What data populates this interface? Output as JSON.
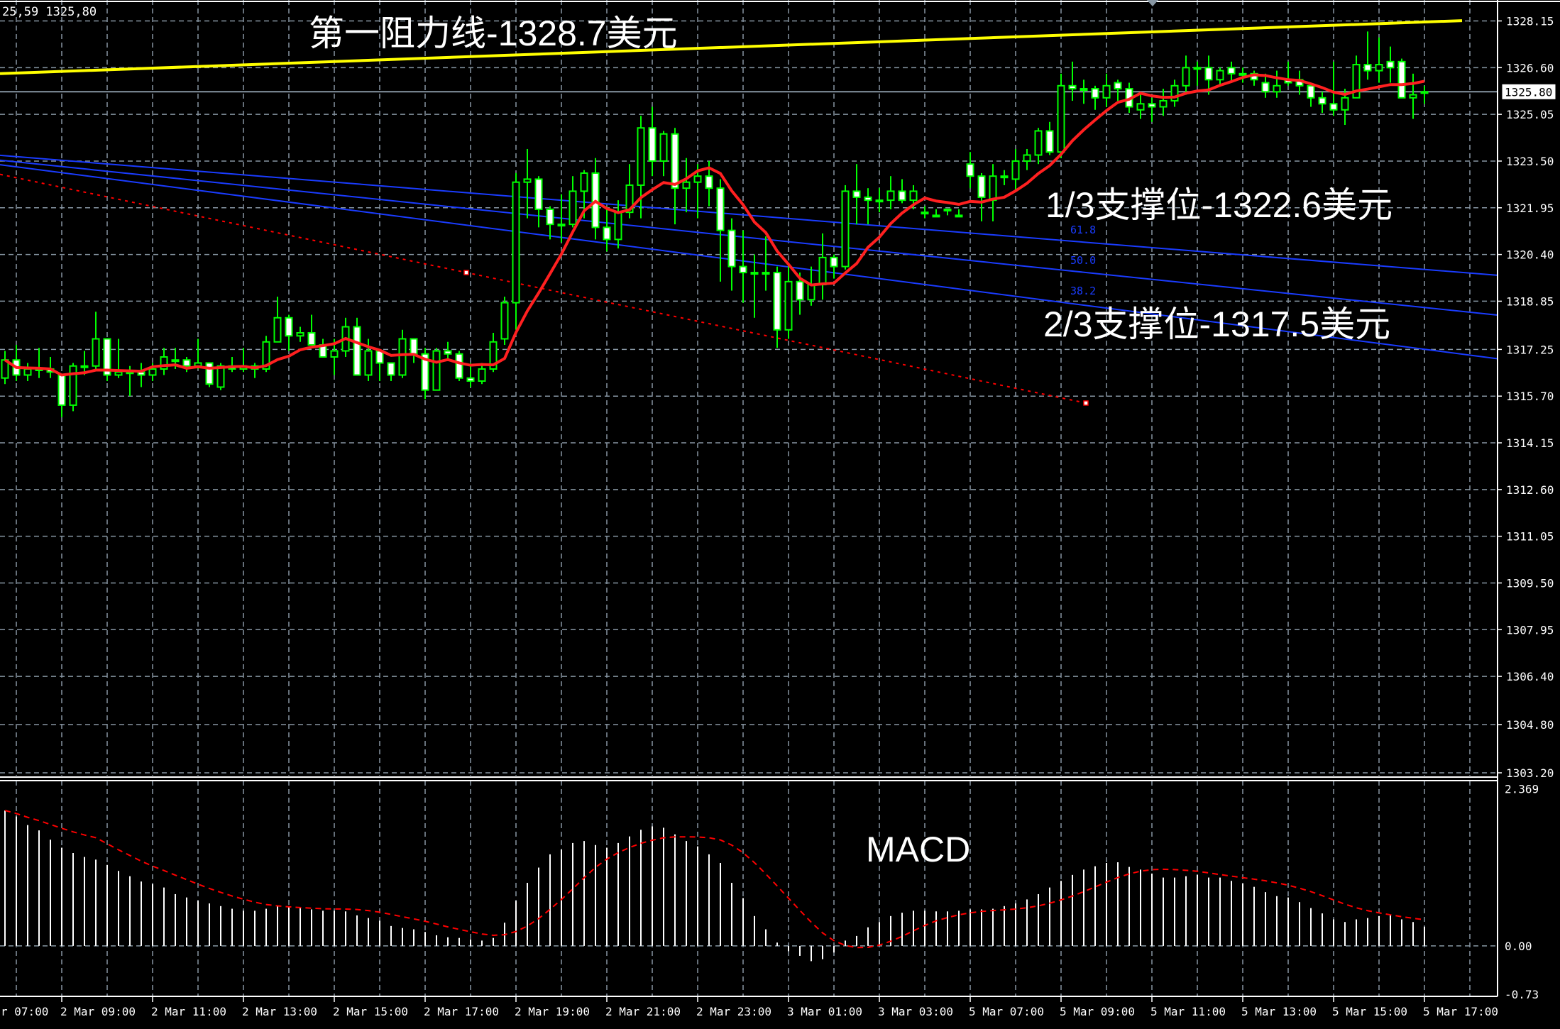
{
  "chart_data": {
    "type": "candlestick",
    "info_readout": "25,59 1325,80",
    "colors": {
      "background": "#000000",
      "grid": "#8796a3",
      "candle_outline": "#00ff00",
      "bull_body": "#000000",
      "bear_body": "#ffffff",
      "moving_average": "#ff2020",
      "resistance_line": "#ffff00",
      "fib_lines": "#1a3cff",
      "trend_dotted": "#ff0000",
      "macd_hist": "#ffffff",
      "macd_signal": "#ff0000",
      "current_price_line": "#8796a3"
    },
    "price_axis": {
      "ylim": [
        1303.2,
        1328.15
      ],
      "ticks": [
        "1328.15",
        "1326.60",
        "1325.05",
        "1323.50",
        "1321.95",
        "1320.40",
        "1318.85",
        "1317.25",
        "1315.70",
        "1314.15",
        "1312.60",
        "1311.05",
        "1309.50",
        "1307.95",
        "1306.40",
        "1304.80",
        "1303.20"
      ],
      "current_price": "1325.80"
    },
    "time_axis": {
      "interval": "15 min per candle",
      "labels": [
        "r 07:00",
        "2 Mar 09:00",
        "2 Mar 11:00",
        "2 Mar 13:00",
        "2 Mar 15:00",
        "2 Mar 17:00",
        "2 Mar 19:00",
        "2 Mar 21:00",
        "2 Mar 23:00",
        "3 Mar 01:00",
        "3 Mar 03:00",
        "5 Mar 07:00",
        "5 Mar 09:00",
        "5 Mar 11:00",
        "5 Mar 13:00",
        "5 Mar 15:00",
        "5 Mar 17:00"
      ]
    },
    "annotations": {
      "resistance": "第一阻力线-1328.7美元",
      "support_1": "1/3支撑位-1322.6美元",
      "support_2": "2/3支撑位-1317.5美元",
      "macd_title": "MACD"
    },
    "fib_levels": [
      "61.8",
      "50.0",
      "38.2"
    ],
    "lines": {
      "resistance": {
        "price_left": 1326.4,
        "price_right": 1328.16
      },
      "fib": [
        {
          "price_left": 1323.69,
          "price_right": 1319.71
        },
        {
          "price_left": 1323.53,
          "price_right": 1318.39
        },
        {
          "price_left": 1323.38,
          "price_right": 1316.94
        }
      ],
      "trend_dotted": {
        "price_left": 1323.06,
        "price_mid": 1319.8,
        "price_end": 1315.47
      }
    },
    "candles_ohlc": [
      [
        1316.3,
        1317.2,
        1316.1,
        1316.9
      ],
      [
        1316.9,
        1317.4,
        1316.2,
        1316.4
      ],
      [
        1316.4,
        1316.8,
        1316.2,
        1316.6
      ],
      [
        1316.6,
        1317.3,
        1316.3,
        1316.6
      ],
      [
        1316.6,
        1317.0,
        1316.3,
        1316.5
      ],
      [
        1316.4,
        1316.4,
        1315.0,
        1315.4
      ],
      [
        1315.4,
        1316.8,
        1315.2,
        1316.7
      ],
      [
        1316.7,
        1317.2,
        1316.4,
        1316.7
      ],
      [
        1316.7,
        1318.5,
        1316.6,
        1317.6
      ],
      [
        1317.6,
        1317.6,
        1316.2,
        1316.4
      ],
      [
        1316.4,
        1317.6,
        1316.3,
        1316.5
      ],
      [
        1316.5,
        1316.7,
        1315.7,
        1316.5
      ],
      [
        1316.5,
        1316.8,
        1316.0,
        1316.4
      ],
      [
        1316.4,
        1316.8,
        1316.2,
        1316.6
      ],
      [
        1316.6,
        1317.3,
        1316.4,
        1317.0
      ],
      [
        1316.9,
        1317.3,
        1316.6,
        1316.9
      ],
      [
        1316.9,
        1317.0,
        1316.5,
        1316.7
      ],
      [
        1316.7,
        1317.6,
        1316.6,
        1316.8
      ],
      [
        1316.8,
        1316.8,
        1316.0,
        1316.1
      ],
      [
        1316.0,
        1316.8,
        1315.9,
        1316.7
      ],
      [
        1316.7,
        1317.0,
        1316.5,
        1316.6
      ],
      [
        1316.6,
        1317.3,
        1316.5,
        1316.7
      ],
      [
        1316.7,
        1316.8,
        1316.3,
        1316.6
      ],
      [
        1316.6,
        1317.7,
        1316.5,
        1317.5
      ],
      [
        1317.5,
        1319.0,
        1317.5,
        1318.3
      ],
      [
        1318.3,
        1318.4,
        1317.2,
        1317.7
      ],
      [
        1317.7,
        1318.0,
        1317.5,
        1317.8
      ],
      [
        1317.8,
        1318.4,
        1317.4,
        1317.4
      ],
      [
        1317.4,
        1317.6,
        1317.0,
        1317.0
      ],
      [
        1317.0,
        1317.6,
        1316.4,
        1317.2
      ],
      [
        1317.2,
        1318.3,
        1317.0,
        1318.0
      ],
      [
        1318.0,
        1318.3,
        1316.4,
        1316.4
      ],
      [
        1316.4,
        1317.6,
        1316.2,
        1317.2
      ],
      [
        1317.2,
        1317.2,
        1316.2,
        1316.8
      ],
      [
        1316.8,
        1316.8,
        1316.2,
        1316.4
      ],
      [
        1316.4,
        1317.9,
        1316.3,
        1317.6
      ],
      [
        1317.6,
        1317.6,
        1316.8,
        1317.1
      ],
      [
        1317.1,
        1317.3,
        1315.6,
        1315.9
      ],
      [
        1315.9,
        1317.3,
        1315.9,
        1317.2
      ],
      [
        1317.2,
        1317.5,
        1316.9,
        1317.1
      ],
      [
        1317.1,
        1317.2,
        1316.2,
        1316.3
      ],
      [
        1316.3,
        1316.8,
        1316.0,
        1316.2
      ],
      [
        1316.2,
        1316.8,
        1316.1,
        1316.6
      ],
      [
        1316.6,
        1317.8,
        1316.5,
        1317.5
      ],
      [
        1317.6,
        1319.0,
        1317.4,
        1318.8
      ],
      [
        1318.8,
        1323.1,
        1317.9,
        1322.8
      ],
      [
        1322.8,
        1323.9,
        1321.6,
        1322.9
      ],
      [
        1322.9,
        1323.0,
        1321.3,
        1321.9
      ],
      [
        1321.9,
        1322.0,
        1320.9,
        1321.4
      ],
      [
        1321.4,
        1322.4,
        1320.8,
        1321.4
      ],
      [
        1321.4,
        1323.0,
        1321.3,
        1322.5
      ],
      [
        1322.5,
        1323.2,
        1321.6,
        1323.1
      ],
      [
        1323.1,
        1323.6,
        1320.9,
        1321.3
      ],
      [
        1321.3,
        1322.0,
        1320.5,
        1320.9
      ],
      [
        1320.9,
        1322.2,
        1320.6,
        1321.8
      ],
      [
        1321.8,
        1323.4,
        1321.6,
        1322.7
      ],
      [
        1322.7,
        1325.0,
        1321.6,
        1324.6
      ],
      [
        1324.6,
        1325.3,
        1323.0,
        1323.5
      ],
      [
        1323.5,
        1324.5,
        1323.0,
        1324.4
      ],
      [
        1324.4,
        1324.6,
        1321.4,
        1322.6
      ],
      [
        1322.6,
        1323.6,
        1321.8,
        1322.8
      ],
      [
        1322.8,
        1323.4,
        1321.6,
        1323.0
      ],
      [
        1323.0,
        1323.5,
        1322.0,
        1322.6
      ],
      [
        1322.6,
        1322.9,
        1319.5,
        1321.2
      ],
      [
        1321.2,
        1321.6,
        1319.2,
        1320.0
      ],
      [
        1320.0,
        1321.2,
        1318.8,
        1319.8
      ],
      [
        1319.8,
        1320.4,
        1318.3,
        1319.8
      ],
      [
        1319.8,
        1321.0,
        1319.2,
        1319.8
      ],
      [
        1319.8,
        1320.0,
        1317.3,
        1317.9
      ],
      [
        1317.9,
        1320.1,
        1317.6,
        1319.5
      ],
      [
        1319.5,
        1319.8,
        1318.4,
        1318.9
      ],
      [
        1318.9,
        1320.0,
        1318.7,
        1319.4
      ],
      [
        1319.4,
        1321.1,
        1318.9,
        1320.3
      ],
      [
        1320.3,
        1320.4,
        1319.6,
        1320.0
      ],
      [
        1320.0,
        1322.7,
        1319.9,
        1322.5
      ],
      [
        1322.5,
        1323.4,
        1321.4,
        1322.3
      ],
      [
        1322.3,
        1322.6,
        1321.4,
        1322.2
      ],
      [
        1322.2,
        1322.6,
        1321.8,
        1322.2
      ],
      [
        1322.2,
        1323.0,
        1321.9,
        1322.5
      ],
      [
        1322.5,
        1322.9,
        1322.1,
        1322.2
      ],
      [
        1322.2,
        1322.7,
        1321.9,
        1322.5
      ],
      [
        1321.8,
        1322.0,
        1321.6,
        1321.8
      ],
      [
        1321.7,
        1321.9,
        1321.7,
        1321.7
      ],
      [
        1321.9,
        1321.9,
        1321.7,
        1321.9
      ],
      [
        1321.7,
        1321.9,
        1321.7,
        1321.7
      ],
      [
        1323.4,
        1323.8,
        1322.6,
        1323.0
      ],
      [
        1323.0,
        1323.1,
        1321.5,
        1322.3
      ],
      [
        1322.2,
        1323.4,
        1321.5,
        1323.0
      ],
      [
        1323.0,
        1323.2,
        1322.7,
        1323.0
      ],
      [
        1322.9,
        1323.9,
        1322.5,
        1323.5
      ],
      [
        1323.5,
        1323.9,
        1323.2,
        1323.7
      ],
      [
        1323.7,
        1324.6,
        1323.4,
        1324.5
      ],
      [
        1324.5,
        1324.8,
        1323.7,
        1323.8
      ],
      [
        1323.8,
        1326.4,
        1323.6,
        1326.0
      ],
      [
        1326.0,
        1326.8,
        1325.5,
        1325.9
      ],
      [
        1325.9,
        1326.2,
        1325.4,
        1325.9
      ],
      [
        1325.9,
        1326.0,
        1325.2,
        1325.6
      ],
      [
        1325.6,
        1326.4,
        1325.3,
        1326.0
      ],
      [
        1326.1,
        1326.2,
        1325.5,
        1325.9
      ],
      [
        1325.9,
        1326.1,
        1325.1,
        1325.3
      ],
      [
        1325.2,
        1325.7,
        1324.9,
        1325.4
      ],
      [
        1325.4,
        1325.6,
        1324.8,
        1325.3
      ],
      [
        1325.3,
        1325.9,
        1325.0,
        1325.5
      ],
      [
        1325.5,
        1326.2,
        1325.3,
        1326.0
      ],
      [
        1326.0,
        1327.0,
        1325.7,
        1326.6
      ],
      [
        1326.6,
        1326.8,
        1326.0,
        1326.6
      ],
      [
        1326.6,
        1327.0,
        1325.7,
        1326.2
      ],
      [
        1326.2,
        1326.6,
        1326.0,
        1326.5
      ],
      [
        1326.6,
        1326.8,
        1326.1,
        1326.4
      ],
      [
        1326.4,
        1326.6,
        1326.1,
        1326.4
      ],
      [
        1326.4,
        1326.5,
        1326.0,
        1326.2
      ],
      [
        1326.1,
        1326.4,
        1325.6,
        1325.8
      ],
      [
        1325.8,
        1326.5,
        1325.6,
        1326.0
      ],
      [
        1326.2,
        1326.8,
        1326.0,
        1326.1
      ],
      [
        1326.2,
        1326.5,
        1325.7,
        1326.0
      ],
      [
        1326.0,
        1326.0,
        1325.3,
        1325.6
      ],
      [
        1325.6,
        1325.8,
        1325.1,
        1325.4
      ],
      [
        1325.4,
        1326.8,
        1325.0,
        1325.2
      ],
      [
        1325.2,
        1325.9,
        1324.7,
        1325.6
      ],
      [
        1325.6,
        1327.0,
        1325.6,
        1326.7
      ],
      [
        1326.7,
        1327.8,
        1326.2,
        1326.5
      ],
      [
        1326.5,
        1327.6,
        1326.1,
        1326.7
      ],
      [
        1326.8,
        1327.3,
        1326.1,
        1326.6
      ],
      [
        1326.8,
        1326.9,
        1325.6,
        1325.6
      ],
      [
        1325.6,
        1326.4,
        1324.9,
        1325.7
      ],
      [
        1325.8,
        1326.0,
        1325.4,
        1325.8
      ]
    ],
    "macd": {
      "axis_labels": [
        "2.369",
        "0.00",
        "-0.73"
      ],
      "ylim": [
        -0.76,
        2.49
      ],
      "histogram": [
        2.04,
        1.95,
        1.82,
        1.74,
        1.6,
        1.48,
        1.4,
        1.34,
        1.3,
        1.22,
        1.13,
        1.05,
        0.97,
        0.93,
        0.88,
        0.78,
        0.73,
        0.68,
        0.64,
        0.6,
        0.56,
        0.53,
        0.53,
        0.56,
        0.6,
        0.6,
        0.58,
        0.55,
        0.53,
        0.53,
        0.52,
        0.46,
        0.42,
        0.38,
        0.3,
        0.27,
        0.25,
        0.21,
        0.16,
        0.13,
        0.12,
        0.1,
        0.08,
        0.12,
        0.35,
        0.68,
        0.95,
        1.18,
        1.38,
        1.45,
        1.55,
        1.58,
        1.52,
        1.48,
        1.55,
        1.65,
        1.75,
        1.8,
        1.78,
        1.68,
        1.58,
        1.5,
        1.38,
        1.25,
        0.95,
        0.72,
        0.45,
        0.25,
        0.05,
        -0.08,
        -0.15,
        -0.23,
        -0.2,
        -0.1,
        0.08,
        0.15,
        0.28,
        0.36,
        0.45,
        0.5,
        0.53,
        0.53,
        0.52,
        0.52,
        0.53,
        0.55,
        0.55,
        0.56,
        0.6,
        0.64,
        0.7,
        0.78,
        0.88,
        0.98,
        1.07,
        1.15,
        1.2,
        1.25,
        1.26,
        1.19,
        1.15,
        1.09,
        1.03,
        1.03,
        1.05,
        1.07,
        1.03,
        1.03,
        0.98,
        0.94,
        0.89,
        0.81,
        0.75,
        0.73,
        0.66,
        0.57,
        0.49,
        0.4,
        0.36,
        0.4,
        0.42,
        0.45,
        0.47,
        0.4,
        0.36,
        0.29
      ]
    }
  }
}
